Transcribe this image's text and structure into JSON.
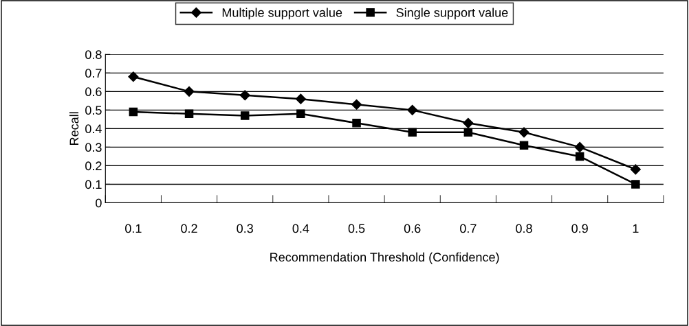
{
  "chart_data": {
    "type": "line",
    "xlabel": "Recommendation Threshold (Confidence)",
    "ylabel": "Recall",
    "categories": [
      "0.1",
      "0.2",
      "0.3",
      "0.4",
      "0.5",
      "0.6",
      "0.7",
      "0.8",
      "0.9",
      "1"
    ],
    "series": [
      {
        "name": "Multiple support value",
        "color": "#000000",
        "marker": "diamond",
        "values": [
          0.68,
          0.6,
          0.58,
          0.56,
          0.53,
          0.5,
          0.43,
          0.38,
          0.3,
          0.18
        ]
      },
      {
        "name": "Single support value",
        "color": "#000000",
        "marker": "square",
        "values": [
          0.49,
          0.48,
          0.47,
          0.48,
          0.43,
          0.38,
          0.38,
          0.31,
          0.25,
          0.1
        ]
      }
    ],
    "ylim": [
      0,
      0.8
    ],
    "yticks": [
      0,
      0.1,
      0.2,
      0.3,
      0.4,
      0.5,
      0.6,
      0.7,
      0.8
    ],
    "grid": "y",
    "legend": "top",
    "line_style": "solid"
  }
}
